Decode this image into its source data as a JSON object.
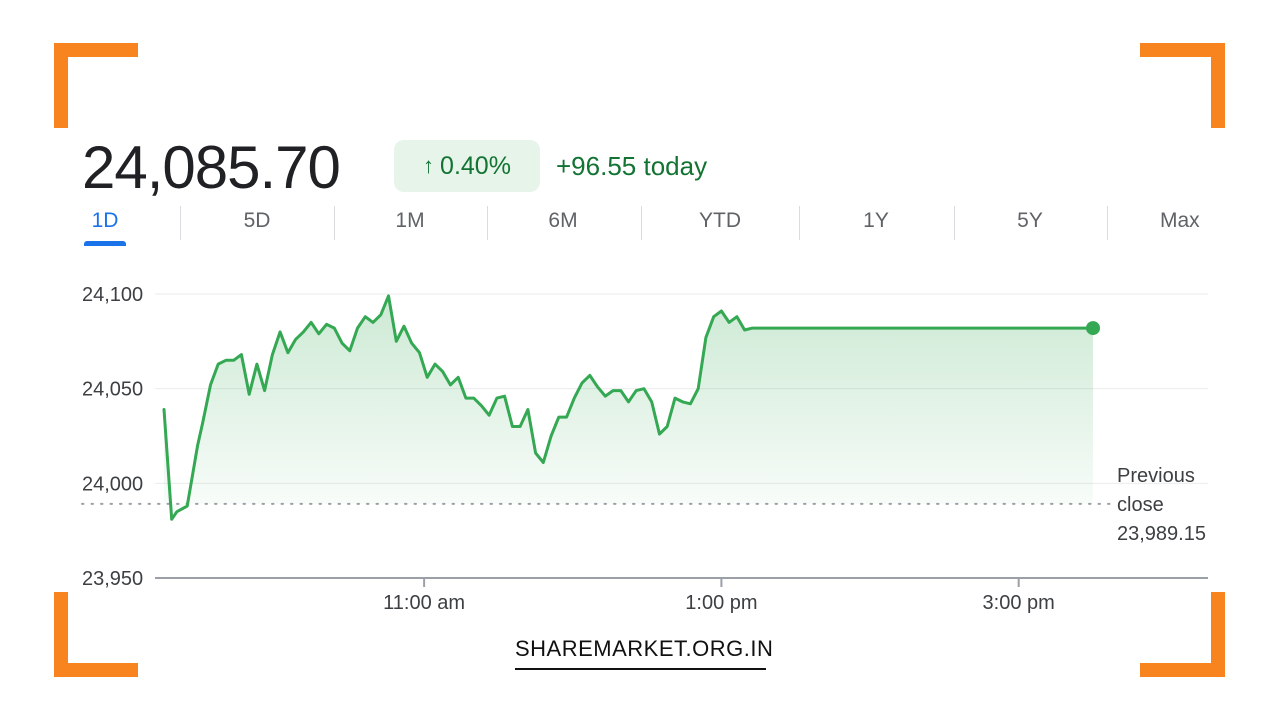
{
  "header": {
    "price": "24,085.70",
    "change_arrow": "↑",
    "change_percent": "0.40%",
    "change_today": "+96.55 today"
  },
  "tabs": [
    {
      "label": "1D",
      "active": true
    },
    {
      "label": "5D",
      "active": false
    },
    {
      "label": "1M",
      "active": false
    },
    {
      "label": "6M",
      "active": false
    },
    {
      "label": "YTD",
      "active": false
    },
    {
      "label": "1Y",
      "active": false
    },
    {
      "label": "5Y",
      "active": false
    },
    {
      "label": "Max",
      "active": false
    }
  ],
  "previous_close": {
    "line1": "Previous",
    "line2": "close",
    "value_label": "23,989.15",
    "value": 23989.15
  },
  "watermark": "SHAREMARKET.ORG.IN",
  "colors": {
    "line": "#34a853",
    "accent": "#137333",
    "badge_bg": "#e6f4ea",
    "tab_active": "#1a73e8",
    "corner": "#f7841f"
  },
  "chart_data": {
    "type": "line",
    "ylim": [
      23950,
      24100
    ],
    "yticks": [
      24100,
      24050,
      24000,
      23950
    ],
    "ytick_labels": [
      "24,100",
      "24,050",
      "24,000",
      "23,950"
    ],
    "xlim_hours": [
      9.25,
      15.5
    ],
    "xticks_hours": [
      11,
      13,
      15
    ],
    "xtick_labels": [
      "11:00 am",
      "1:00 pm",
      "3:00 pm"
    ],
    "grid": true,
    "x_hours": [
      9.25,
      9.3,
      9.333,
      9.4,
      9.467,
      9.5,
      9.55,
      9.6,
      9.65,
      9.7,
      9.75,
      9.8,
      9.85,
      9.9,
      9.95,
      10.0,
      10.05,
      10.1,
      10.15,
      10.2,
      10.25,
      10.3,
      10.35,
      10.4,
      10.45,
      10.5,
      10.55,
      10.6,
      10.65,
      10.7,
      10.75,
      10.8,
      10.85,
      10.9,
      10.95,
      11.0,
      11.05,
      11.1,
      11.15,
      11.2,
      11.25,
      11.3,
      11.35,
      11.4,
      11.45,
      11.5,
      11.55,
      11.6,
      11.65,
      11.7,
      11.75,
      11.8,
      11.85,
      11.9,
      11.95,
      12.0,
      12.05,
      12.1,
      12.15,
      12.2,
      12.25,
      12.3,
      12.35,
      12.4,
      12.45,
      12.5,
      12.55,
      12.6,
      12.65,
      12.7,
      12.75,
      12.8,
      12.85,
      12.9,
      12.95,
      13.0,
      13.05,
      13.1,
      13.15,
      13.2,
      13.25,
      13.3,
      13.35,
      13.4,
      13.45,
      13.5,
      13.55,
      13.6,
      13.65,
      13.7,
      13.75,
      13.8,
      13.85,
      13.9,
      13.95,
      14.0,
      14.05,
      14.1,
      14.15,
      14.2,
      14.25,
      14.3,
      14.35,
      14.4,
      14.45,
      14.5,
      14.55,
      14.6,
      14.65,
      14.7,
      14.75,
      14.8,
      14.85,
      14.9,
      14.95,
      15.0,
      15.05,
      15.1,
      15.15,
      15.2,
      15.25,
      15.3,
      15.35,
      15.4,
      15.45,
      15.5
    ],
    "values": [
      24039,
      23981,
      23985,
      23988,
      24020,
      24032,
      24052,
      24063,
      24065,
      24065,
      24068,
      24047,
      24063,
      24049,
      24068,
      24080,
      24069,
      24076,
      24080,
      24085,
      24079,
      24084,
      24082,
      24074,
      24070,
      24082,
      24088,
      24085,
      24089,
      24099,
      24075,
      24083,
      24074,
      24069,
      24056,
      24063,
      24059,
      24052,
      24056,
      24045,
      24045,
      24041,
      24036,
      24045,
      24046,
      24030,
      24030,
      24039,
      24016,
      24011,
      24025,
      24035,
      24035,
      24045,
      24053,
      24057,
      24051,
      24046,
      24049,
      24049,
      24043,
      24049,
      24050,
      24043,
      24026,
      24030,
      24045,
      24043,
      24042,
      24050,
      24077,
      24088,
      24091,
      24085,
      24088,
      24081,
      24082,
      24082,
      24082,
      24082,
      24082,
      24082,
      24082,
      24082,
      24082,
      24082,
      24082,
      24082,
      24082,
      24082,
      24082,
      24082,
      24082,
      24082,
      24082,
      24082,
      24082,
      24082,
      24082,
      24082,
      24082,
      24082,
      24082,
      24082,
      24082,
      24082,
      24082,
      24082,
      24082,
      24082,
      24082,
      24082,
      24082,
      24082,
      24082,
      24082,
      24082,
      24082,
      24082,
      24082,
      24082,
      24082,
      24082,
      24082,
      24082,
      24082
    ],
    "last_point_hours": 15.5,
    "last_value": 24082
  }
}
